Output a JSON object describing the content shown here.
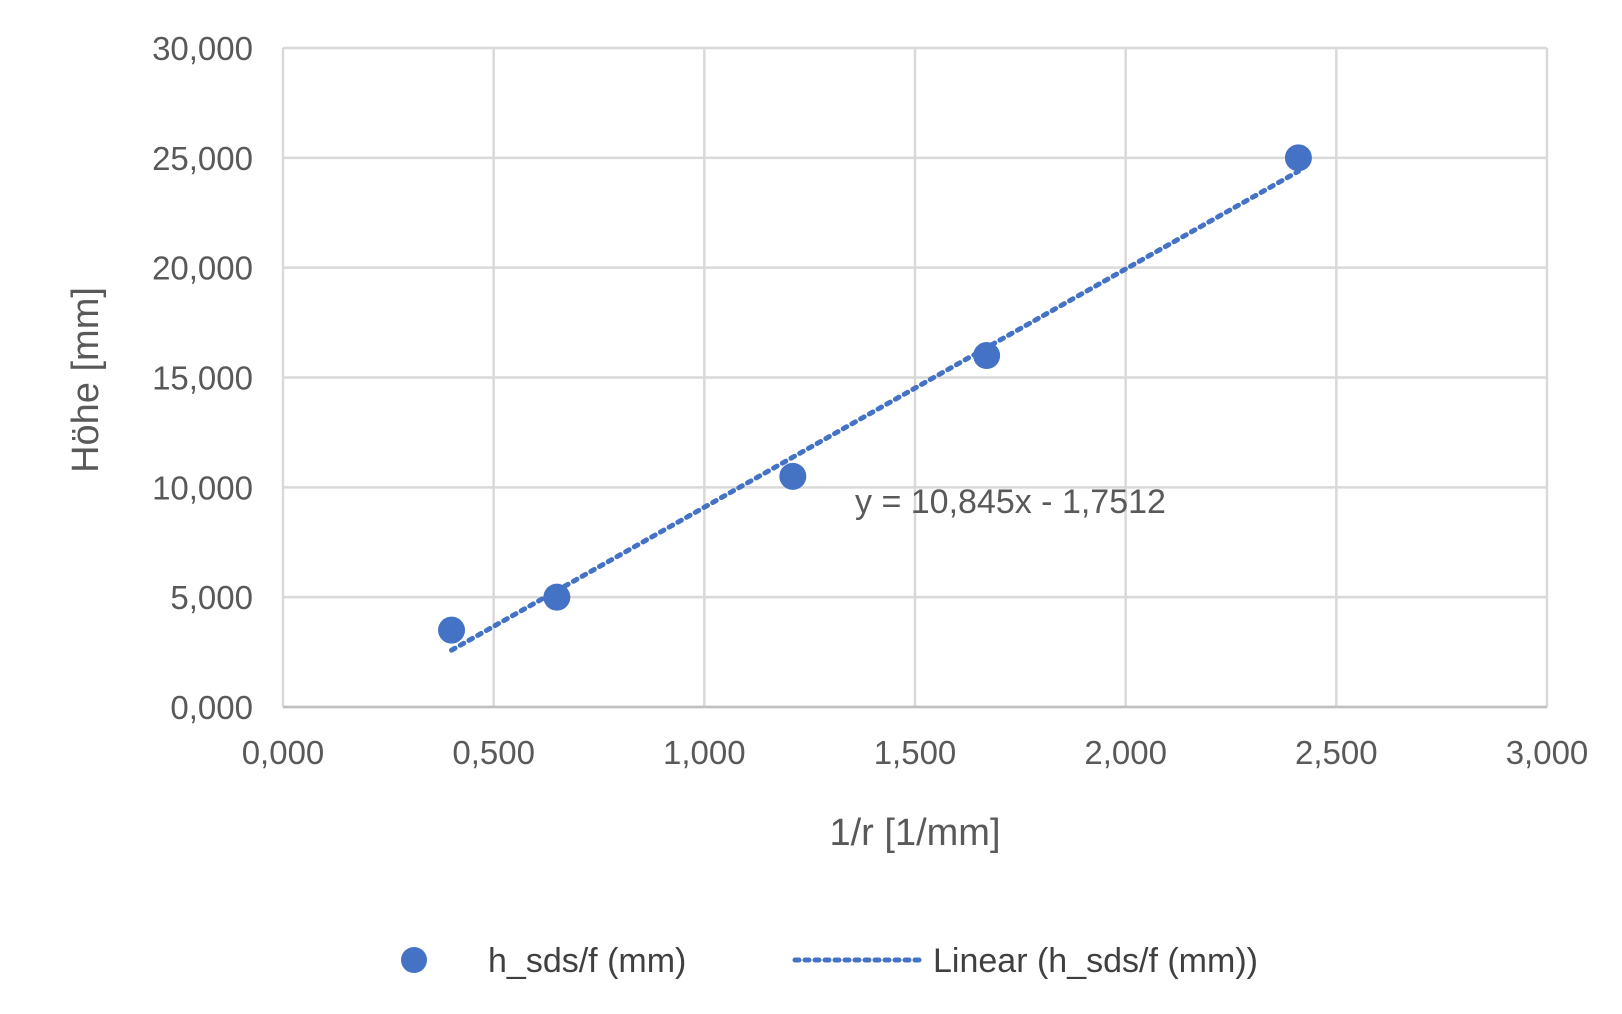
{
  "chart_data": {
    "type": "scatter",
    "title": "",
    "xlabel": "1/r [1/mm]",
    "ylabel": "Höhe [mm]",
    "xlim": [
      0,
      3
    ],
    "ylim": [
      0,
      30
    ],
    "x_ticks": [
      0,
      0.5,
      1,
      1.5,
      2,
      2.5,
      3
    ],
    "y_ticks": [
      0,
      5,
      10,
      15,
      20,
      25,
      30
    ],
    "x_tick_labels": [
      "0,000",
      "0,500",
      "1,000",
      "1,500",
      "2,000",
      "2,500",
      "3,000"
    ],
    "y_tick_labels": [
      "0,000",
      "5,000",
      "10,000",
      "15,000",
      "20,000",
      "25,000",
      "30,000"
    ],
    "grid": true,
    "legend_position": "bottom",
    "series": [
      {
        "name": "h_sds/f (mm)",
        "color": "#4472C4",
        "x": [
          0.4,
          0.65,
          1.21,
          1.67,
          2.41
        ],
        "y": [
          3.5,
          5.0,
          10.5,
          16.0,
          25.0
        ]
      }
    ],
    "trendline": {
      "name": "Linear (h_sds/f (mm))",
      "type": "linear",
      "slope": 10.845,
      "intercept": -1.7512,
      "x_range": [
        0.4,
        2.41
      ],
      "color": "#4472C4",
      "style": "dotted"
    },
    "annotations": [
      {
        "text": "y = 10,845x - 1,7512"
      }
    ]
  }
}
